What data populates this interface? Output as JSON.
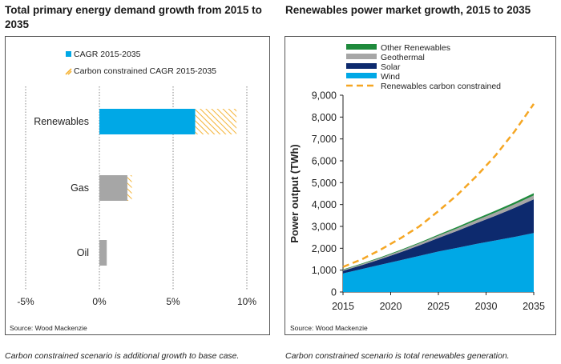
{
  "left": {
    "title": "Total primary energy demand growth from 2015 to 2035",
    "source": "Source: Wood Mackenzie",
    "note": "Carbon constrained scenario is additional growth to base case.",
    "colors": {
      "base_bar": "#00a8e6",
      "gray_bar": "#a6a6a6",
      "constrained_hatch": "#f5b335"
    }
  },
  "right": {
    "title": "Renewables power market growth, 2015 to 2035",
    "source": "Source: Wood Mackenzie",
    "note": "Carbon constrained scenario is total renewables generation.",
    "colors": {
      "Wind": "#00a8e6",
      "Solar": "#0d2a6e",
      "Geothermal": "#a6a6a6",
      "Other Renewables": "#1e8a3c",
      "constrained": "#f5a623"
    }
  },
  "chart_data": [
    {
      "type": "bar",
      "orientation": "horizontal",
      "title": "Total primary energy demand growth from 2015 to 2035",
      "categories": [
        "Renewables",
        "Gas",
        "Oil"
      ],
      "series": [
        {
          "name": "CAGR 2015-2035",
          "values": [
            6.5,
            1.9,
            0.5
          ]
        },
        {
          "name": "Carbon constrained CAGR 2015-2035",
          "values": [
            2.8,
            0.3,
            0.0
          ]
        }
      ],
      "xlim": [
        -5,
        10
      ],
      "xticks": [
        "-5%",
        "0%",
        "5%",
        "10%"
      ],
      "xtick_values": [
        -5,
        0,
        5,
        10
      ],
      "grid": "vertical dotted",
      "legend": "top"
    },
    {
      "type": "area",
      "title": "Renewables power market growth, 2015 to 2035",
      "ylabel": "Power output (TWh)",
      "x": [
        2015,
        2017,
        2019,
        2021,
        2023,
        2025,
        2027,
        2029,
        2031,
        2033,
        2035
      ],
      "series": [
        {
          "name": "Wind",
          "values": [
            850,
            1050,
            1250,
            1450,
            1650,
            1850,
            2020,
            2200,
            2360,
            2520,
            2700
          ]
        },
        {
          "name": "Solar",
          "values": [
            120,
            180,
            260,
            360,
            480,
            620,
            780,
            950,
            1130,
            1330,
            1540
          ]
        },
        {
          "name": "Geothermal",
          "values": [
            40,
            50,
            60,
            75,
            90,
            105,
            120,
            135,
            150,
            165,
            180
          ]
        },
        {
          "name": "Other Renewables",
          "values": [
            20,
            25,
            30,
            35,
            40,
            50,
            60,
            70,
            80,
            90,
            100
          ]
        }
      ],
      "line_series": {
        "name": "Renewables carbon constrained",
        "values": [
          1150,
          1500,
          1950,
          2450,
          3000,
          3700,
          4450,
          5300,
          6250,
          7350,
          8600
        ]
      },
      "xticks": [
        2015,
        2020,
        2025,
        2030,
        2035
      ],
      "ylim": [
        0,
        9000
      ],
      "yticks": [
        "0",
        "1,000",
        "2,000",
        "3,000",
        "4,000",
        "5,000",
        "6,000",
        "7,000",
        "8,000",
        "9,000"
      ],
      "ytick_values": [
        0,
        1000,
        2000,
        3000,
        4000,
        5000,
        6000,
        7000,
        8000,
        9000
      ],
      "grid": "none",
      "legend": "top"
    }
  ]
}
